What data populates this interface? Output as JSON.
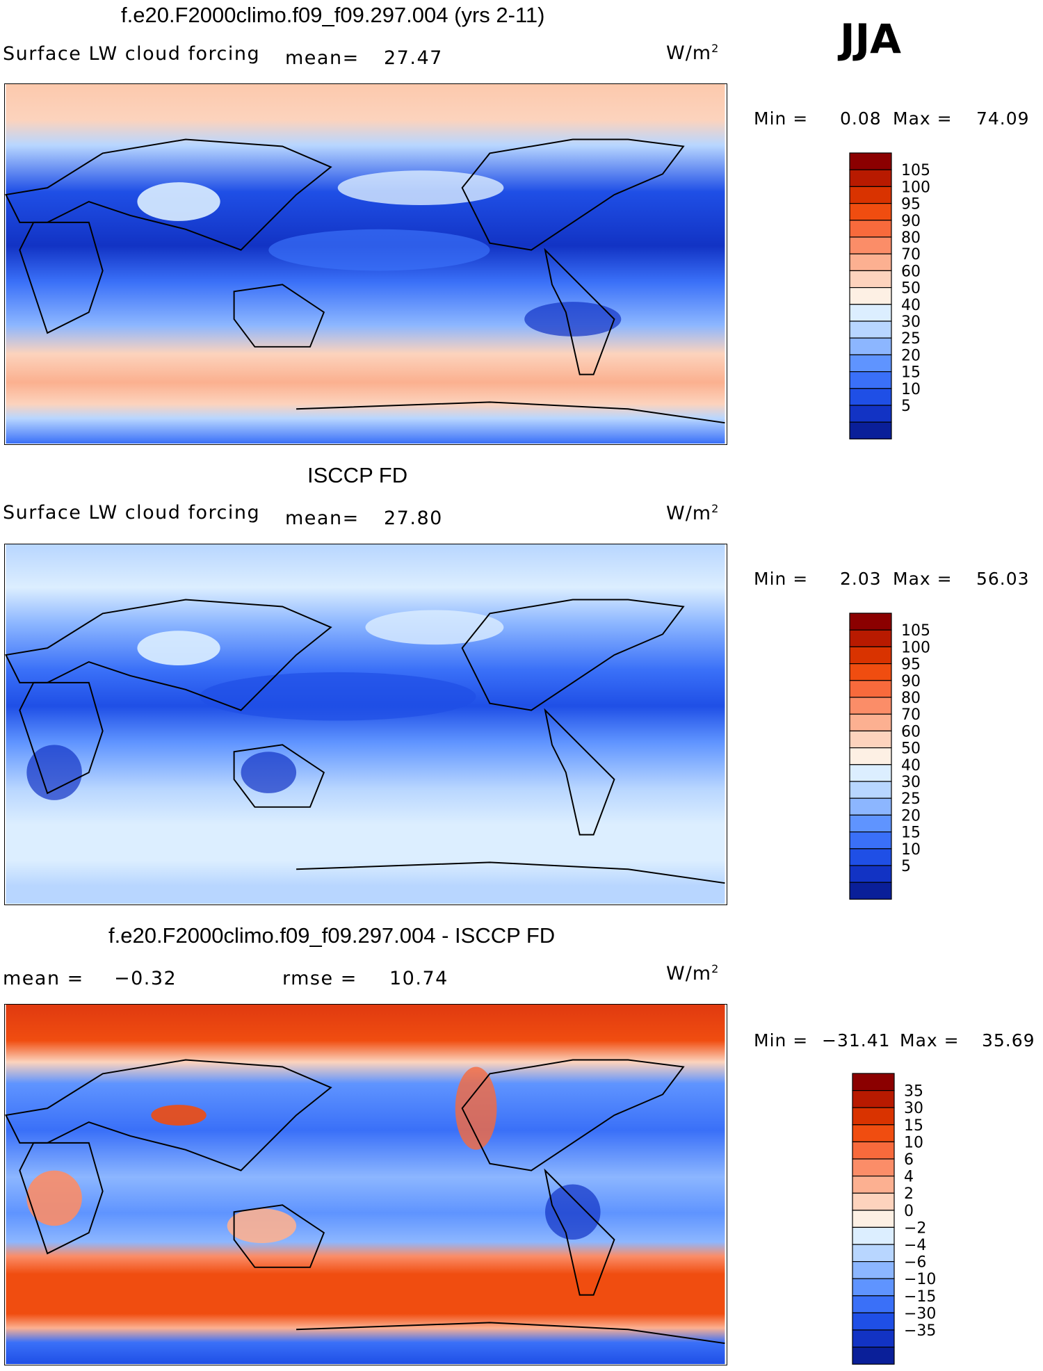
{
  "season": "JJA",
  "units_label": "W/m",
  "units_sup": "2",
  "panels": [
    {
      "title": "f.e20.F2000climo.f09_f09.297.004 (yrs 2-11)",
      "variable": "Surface LW cloud forcing",
      "mean_label": "mean=",
      "mean_value": "27.47",
      "min_label": "Min =",
      "min_value": "0.08",
      "max_label": "Max =",
      "max_value": "74.09",
      "colorbar": {
        "labels": [
          "105",
          "100",
          "95",
          "90",
          "80",
          "70",
          "60",
          "50",
          "40",
          "30",
          "25",
          "20",
          "15",
          "10",
          "5"
        ],
        "colors": [
          "#8b0000",
          "#b81a00",
          "#d93300",
          "#f04d10",
          "#f86a3c",
          "#fb8d68",
          "#fcb091",
          "#fdd3bd",
          "#fdf0e4",
          "#dceeff",
          "#b8d6ff",
          "#8cb6ff",
          "#5f94ff",
          "#3a70f8",
          "#1f4fe6",
          "#1233c4",
          "#0a1f99"
        ]
      }
    },
    {
      "title": "ISCCP FD",
      "variable": "Surface LW cloud forcing",
      "mean_label": "mean=",
      "mean_value": "27.80",
      "min_label": "Min =",
      "min_value": "2.03",
      "max_label": "Max =",
      "max_value": "56.03",
      "colorbar": {
        "labels": [
          "105",
          "100",
          "95",
          "90",
          "80",
          "70",
          "60",
          "50",
          "40",
          "30",
          "25",
          "20",
          "15",
          "10",
          "5"
        ],
        "colors": [
          "#8b0000",
          "#b81a00",
          "#d93300",
          "#f04d10",
          "#f86a3c",
          "#fb8d68",
          "#fcb091",
          "#fdd3bd",
          "#fdf0e4",
          "#dceeff",
          "#b8d6ff",
          "#8cb6ff",
          "#5f94ff",
          "#3a70f8",
          "#1f4fe6",
          "#1233c4",
          "#0a1f99"
        ]
      }
    },
    {
      "title": "f.e20.F2000climo.f09_f09.297.004 - ISCCP FD",
      "mean_label": "mean =",
      "mean_value": "−0.32",
      "rmse_label": "rmse =",
      "rmse_value": "10.74",
      "min_label": "Min =",
      "min_value": "−31.41",
      "max_label": "Max =",
      "max_value": "35.69",
      "colorbar": {
        "labels": [
          "35",
          "30",
          "15",
          "10",
          "6",
          "4",
          "2",
          "0",
          "−2",
          "−4",
          "−6",
          "−10",
          "−15",
          "−30",
          "−35"
        ],
        "colors": [
          "#8b0000",
          "#b81a00",
          "#d93300",
          "#f04d10",
          "#f86a3c",
          "#fb8d68",
          "#fcb091",
          "#fdd3bd",
          "#fdf0e4",
          "#dceeff",
          "#b8d6ff",
          "#8cb6ff",
          "#5f94ff",
          "#3a70f8",
          "#1f4fe6",
          "#1233c4",
          "#0a1f99"
        ]
      }
    }
  ]
}
